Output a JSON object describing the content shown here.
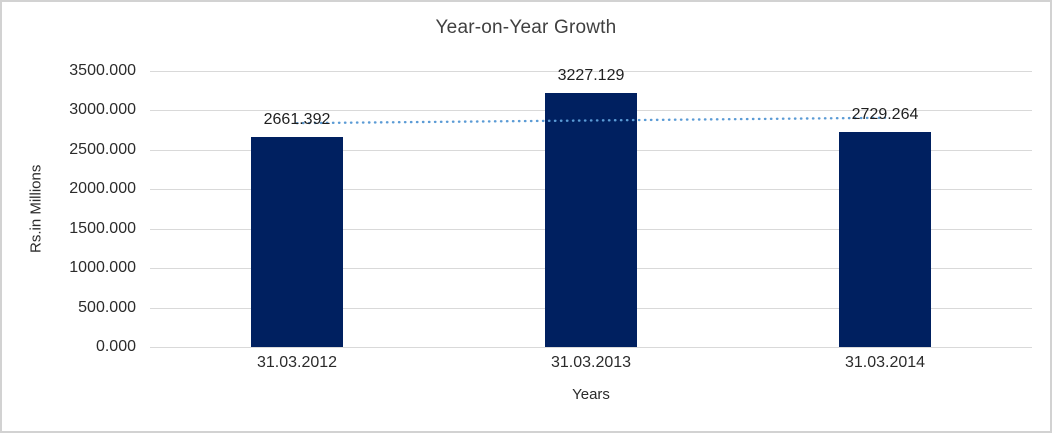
{
  "chart_data": {
    "type": "bar",
    "title": "Year-on-Year Growth",
    "categories": [
      "31.03.2012",
      "31.03.2013",
      "31.03.2014"
    ],
    "values": [
      2661.392,
      3227.129,
      2729.264
    ],
    "data_labels": [
      "2661.392",
      "3227.129",
      "2729.264"
    ],
    "xlabel": "Years",
    "ylabel": "Rs.in Millions",
    "ylim": [
      0,
      3500
    ],
    "ytick_step": 500,
    "ytick_labels": [
      "3500.000",
      "3000.000",
      "2500.000",
      "2000.000",
      "1500.000",
      "1000.000",
      "500.000",
      "0.000"
    ],
    "grid": true,
    "legend": "none",
    "colors": {
      "bar": "#002060",
      "gridline": "#d9d9d9",
      "trendline": "#5b9bd5",
      "title_text": "#404040",
      "axis_text": "#2b2b2b"
    },
    "trendline": {
      "type": "linear",
      "style": "dotted",
      "color": "#5b9bd5",
      "endpoint_values": [
        2838.66,
        2906.53
      ]
    }
  }
}
